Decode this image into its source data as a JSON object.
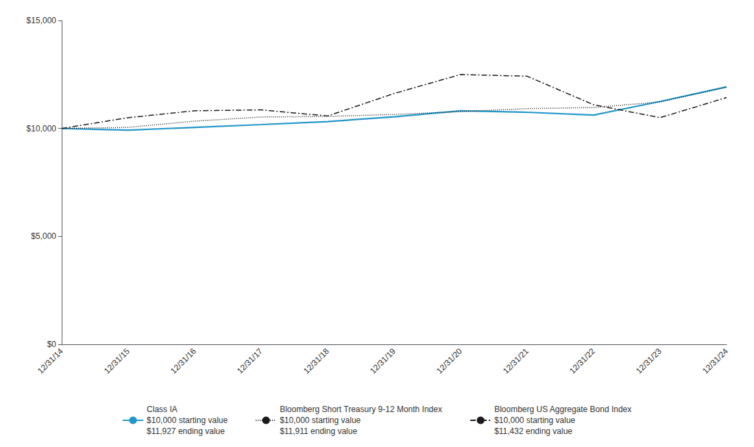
{
  "chart_data": {
    "type": "line",
    "categories": [
      "12/31/14",
      "12/31/15",
      "12/31/16",
      "12/31/17",
      "12/31/18",
      "12/31/19",
      "12/31/20",
      "12/31/21",
      "12/31/22",
      "12/31/23",
      "12/31/24"
    ],
    "series": [
      {
        "name": "Class IA\n$10,000 starting value\n$11,927 ending value",
        "color": "#2196C8",
        "line_style": "solid",
        "values": [
          10000,
          9920,
          10050,
          10180,
          10320,
          10540,
          10820,
          10750,
          10620,
          11250,
          11927
        ]
      },
      {
        "name": "Bloomberg Short Treasury 9-12 Month Index\n$10,000 starting value\n$11,911 ending value",
        "color": "#1a1a1a",
        "line_style": "dotted",
        "values": [
          10000,
          10050,
          10340,
          10530,
          10560,
          10650,
          10780,
          10920,
          10970,
          11230,
          11911
        ]
      },
      {
        "name": "Bloomberg US Aggregate Bond Index\n$10,000 starting value\n$11,432 ending value",
        "color": "#1a1a1a",
        "line_style": "dashdot",
        "values": [
          10000,
          10500,
          10820,
          10860,
          10580,
          11620,
          12500,
          12420,
          11100,
          10500,
          11432
        ]
      }
    ],
    "ylim": [
      0,
      15000
    ],
    "yticks": [
      {
        "value": 0,
        "label": "$0"
      },
      {
        "value": 5000,
        "label": "$5,000"
      },
      {
        "value": 10000,
        "label": "$10,000"
      },
      {
        "value": 15000,
        "label": "$15,000"
      }
    ],
    "grid": false,
    "legend": "bottom"
  }
}
